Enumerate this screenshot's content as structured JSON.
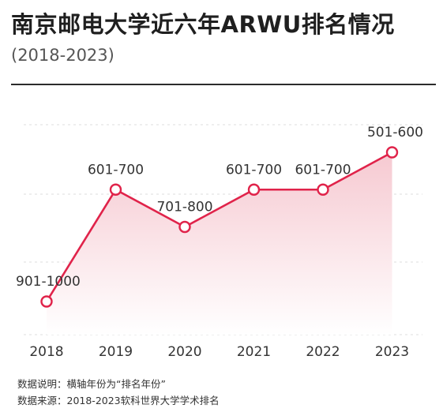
{
  "header": {
    "title": "南京邮电大学近六年ARWU排名情况",
    "subtitle": "(2018-2023)"
  },
  "notes": {
    "axis_note": "数据说明：横轴年份为“排名年份”",
    "source": "数据来源：2018-2023软科世界大学学术排名"
  },
  "colors": {
    "accent": "#e0234a",
    "marker_fill": "#ffffff",
    "area_top": "#f6c9d1",
    "area_bottom": "#ffffff",
    "gridline": "#dddddd"
  },
  "chart_data": {
    "type": "area",
    "title": "南京邮电大学近六年ARWU排名情况",
    "subtitle": "(2018-2023)",
    "xlabel": "",
    "ylabel": "",
    "x": [
      "2018",
      "2019",
      "2020",
      "2021",
      "2022",
      "2023"
    ],
    "series": [
      {
        "values": [
          9,
          6,
          7,
          6,
          6,
          5
        ],
        "labels": [
          "901-1000",
          "601-700",
          "701-800",
          "601-700",
          "601-700",
          "501-600"
        ]
      }
    ],
    "y_note": "rank band index (hundreds): 5 = 501-600 … 9 = 901-1000",
    "y_inverted": true,
    "grid": true,
    "legend": "none"
  }
}
